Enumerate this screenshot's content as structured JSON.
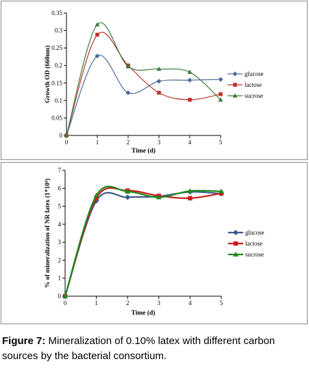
{
  "caption": {
    "label": "Figure 7:",
    "text": "Mineralization of 0.10% latex with different carbon sources by the bacterial consortium."
  },
  "chart_data": [
    {
      "type": "line",
      "xlabel": "Time (d)",
      "ylabel": "Growth OD (660nm)",
      "x": [
        0,
        1,
        2,
        3,
        4,
        5
      ],
      "xticks": [
        "0",
        "1",
        "2",
        "3",
        "4",
        "5"
      ],
      "yticks": [
        "0",
        "0.05",
        "0.1",
        "0.15",
        "0.2",
        "0.25",
        "0.3",
        "0.35"
      ],
      "ylim": [
        0,
        0.35
      ],
      "xlim": [
        0,
        5
      ],
      "grid": false,
      "legend": "right",
      "series": [
        {
          "name": "glucose",
          "color": "#4a6a9a",
          "marker": "diamond",
          "values": [
            0,
            0.227,
            0.122,
            0.155,
            0.158,
            0.16
          ]
        },
        {
          "name": "lactose",
          "color": "#c0302a",
          "marker": "square",
          "values": [
            0,
            0.288,
            0.2,
            0.122,
            0.102,
            0.118
          ]
        },
        {
          "name": "sucrose",
          "color": "#3a7a3a",
          "marker": "triangle",
          "values": [
            0,
            0.317,
            0.197,
            0.19,
            0.181,
            0.102
          ]
        }
      ]
    },
    {
      "type": "line",
      "xlabel": "Time (d)",
      "ylabel": "% of mineralization of NR latex (1*10⁴)",
      "x": [
        0,
        1,
        2,
        3,
        4,
        5
      ],
      "xticks": [
        "0",
        "1",
        "2",
        "3",
        "4",
        "5"
      ],
      "yticks": [
        "0",
        "1",
        "2",
        "3",
        "4",
        "5",
        "6",
        "7"
      ],
      "ylim": [
        0,
        7
      ],
      "xlim": [
        0,
        5
      ],
      "grid": false,
      "legend": "right",
      "series": [
        {
          "name": "glucose",
          "color": "#3a5a8a",
          "marker": "diamond",
          "values": [
            0,
            5.3,
            5.5,
            5.55,
            5.8,
            5.7
          ]
        },
        {
          "name": "lactose",
          "color": "#cc1a1a",
          "marker": "square",
          "values": [
            0,
            5.45,
            5.87,
            5.58,
            5.45,
            5.72
          ]
        },
        {
          "name": "sucrose",
          "color": "#1f8a1f",
          "marker": "triangle",
          "values": [
            0,
            5.6,
            5.82,
            5.5,
            5.85,
            5.83
          ]
        }
      ]
    }
  ]
}
